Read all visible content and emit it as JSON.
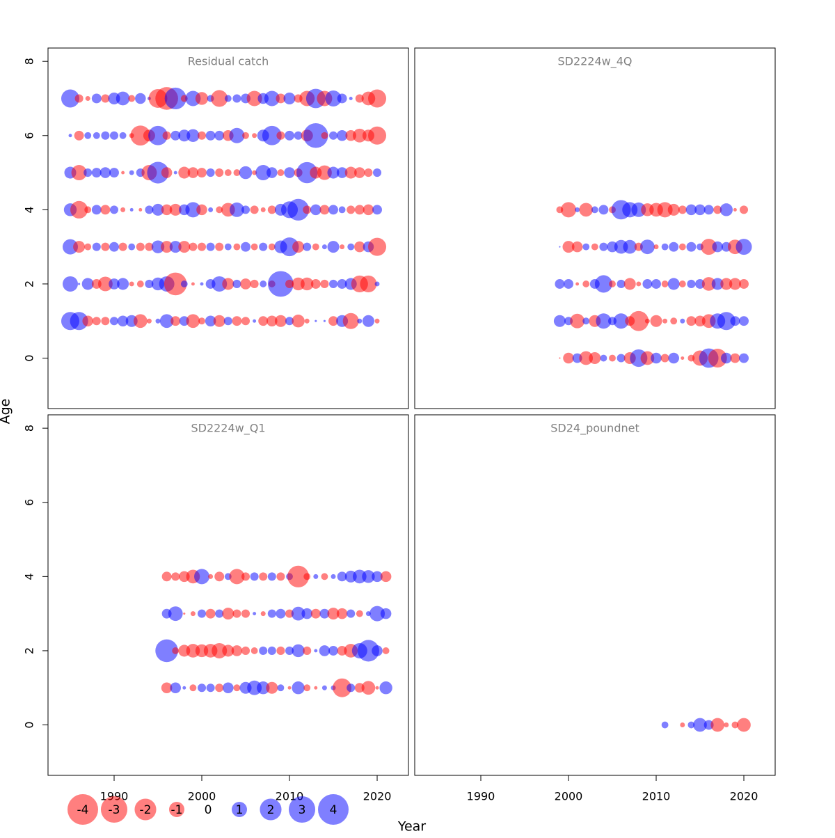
{
  "chart_data": {
    "type": "bubble",
    "x_label": "Year",
    "y_label": "Age",
    "xlim": [
      1982.46,
      2023.57
    ],
    "ylim": [
      -1.36,
      8.36
    ],
    "xticks": [
      1990,
      2000,
      2010,
      2020
    ],
    "yticks": [
      0,
      2,
      4,
      6,
      8
    ],
    "colors": {
      "negative": "#ff0000",
      "positive": "#0000ff"
    },
    "opacity": 0.5,
    "size_legend": [
      -4,
      -3,
      -2,
      -1,
      0,
      1,
      2,
      3,
      4
    ],
    "panels": [
      {
        "title": "Residual catch",
        "x": [
          1985,
          1986,
          1987,
          1988,
          1989,
          1990,
          1991,
          1992,
          1993,
          1994,
          1995,
          1996,
          1997,
          1998,
          1999,
          2000,
          2001,
          2002,
          2003,
          2004,
          2005,
          2006,
          2007,
          2008,
          2009,
          2010,
          2011,
          2012,
          2013,
          2014,
          2015,
          2016,
          2017,
          2018,
          2019,
          2020
        ],
        "series": [
          {
            "y": 7,
            "values": [
              1.4,
              -0.3,
              -0.1,
              0.4,
              -0.3,
              0.6,
              0.8,
              -0.2,
              0.5,
              0.05,
              -1.5,
              -2.2,
              2.0,
              -0.2,
              1.0,
              -0.7,
              0.2,
              -1.2,
              0.2,
              0.3,
              0.4,
              -1.0,
              0.5,
              1.0,
              -0.4,
              0.6,
              -0.3,
              -1.0,
              1.6,
              -1.0,
              1.1,
              0.4,
              0.05,
              -0.3,
              -0.8,
              -1.4
            ]
          },
          {
            "y": 6,
            "values": [
              0.05,
              -0.4,
              0.2,
              0.2,
              0.3,
              0.3,
              0.2,
              -0.1,
              -1.7,
              -0.6,
              1.6,
              -0.3,
              0.4,
              0.6,
              0.7,
              -0.3,
              0.4,
              0.4,
              -0.5,
              1.0,
              -0.2,
              -0.1,
              0.6,
              1.6,
              -0.3,
              0.4,
              0.3,
              -0.6,
              2.6,
              -0.2,
              0.3,
              0.5,
              -0.5,
              -0.8,
              -0.6,
              -1.4
            ]
          },
          {
            "y": 5,
            "values": [
              0.6,
              -1.0,
              0.3,
              0.4,
              0.5,
              0.4,
              -0.05,
              0.1,
              0.3,
              -1.0,
              2.0,
              -0.5,
              0.05,
              -0.6,
              -0.5,
              -0.4,
              0.3,
              -0.3,
              -0.2,
              -0.2,
              0.7,
              -0.1,
              1.0,
              0.5,
              -0.2,
              0.5,
              -0.3,
              1.9,
              -0.6,
              -0.9,
              0.6,
              0.5,
              -0.6,
              -0.5,
              -0.3,
              0.3
            ]
          },
          {
            "y": 4,
            "values": [
              0.7,
              -1.3,
              -0.2,
              0.4,
              -0.4,
              0.3,
              -0.1,
              0.05,
              -0.05,
              0.3,
              0.6,
              -0.5,
              -0.6,
              0.5,
              1.0,
              -0.5,
              0.1,
              -0.2,
              -0.8,
              0.9,
              0.3,
              -0.3,
              -0.1,
              -0.3,
              0.6,
              1.2,
              2.0,
              -0.3,
              0.5,
              -0.4,
              0.4,
              0.2,
              -0.3,
              -0.4,
              -0.5,
              0.4
            ]
          },
          {
            "y": 3,
            "values": [
              1.0,
              -0.6,
              -0.2,
              0.3,
              -0.3,
              0.4,
              -0.3,
              0.2,
              -0.3,
              -0.3,
              0.7,
              -0.6,
              0.6,
              -0.6,
              -0.3,
              -0.3,
              0.3,
              -0.3,
              0.2,
              -0.2,
              0.4,
              -0.2,
              0.3,
              -0.2,
              0.7,
              1.5,
              -0.6,
              0.3,
              -0.2,
              0.1,
              0.6,
              -0.1,
              0.2,
              -0.5,
              0.5,
              -1.4
            ]
          },
          {
            "y": 2,
            "values": [
              1.0,
              0.02,
              0.6,
              -0.4,
              -0.9,
              0.5,
              0.6,
              -0.1,
              -0.2,
              0.3,
              0.7,
              1.0,
              -2.2,
              0.2,
              -0.05,
              0.05,
              0.4,
              1.0,
              -0.6,
              0.3,
              -0.5,
              -0.3,
              0.2,
              -0.2,
              2.8,
              -0.3,
              -0.7,
              -0.7,
              -0.4,
              -0.3,
              0.3,
              0.4,
              0.6,
              -1.2,
              -1.2,
              0.1
            ]
          },
          {
            "y": 1,
            "values": [
              1.4,
              1.4,
              -0.5,
              -0.3,
              -0.3,
              0.3,
              0.5,
              0.6,
              -0.8,
              -0.1,
              0.1,
              0.8,
              -0.4,
              0.4,
              -0.8,
              -0.2,
              0.5,
              -0.6,
              0.3,
              -0.4,
              -0.3,
              0.05,
              -0.4,
              -0.5,
              -0.6,
              0.3,
              -0.7,
              -0.1,
              0.02,
              0.02,
              -0.4,
              0.6,
              -1.1,
              0.1,
              0.6,
              -0.1
            ]
          }
        ]
      },
      {
        "title": "SD2224w_4Q",
        "x": [
          1999,
          2000,
          2001,
          2002,
          2003,
          2004,
          2005,
          2006,
          2007,
          2008,
          2009,
          2010,
          2011,
          2012,
          2013,
          2014,
          2015,
          2016,
          2017,
          2018,
          2019,
          2020
        ],
        "series": [
          {
            "y": 4,
            "values": [
              -0.2,
              -1.0,
              0.1,
              -0.8,
              0.2,
              0.4,
              -0.2,
              1.6,
              1.0,
              0.9,
              -0.7,
              -0.8,
              -1.0,
              -0.6,
              -0.3,
              0.5,
              0.5,
              0.4,
              -0.3,
              0.7,
              -0.05,
              -0.3
            ]
          },
          {
            "y": 3,
            "values": [
              0.01,
              -0.6,
              -0.5,
              0.2,
              -0.2,
              0.3,
              0.5,
              0.8,
              0.8,
              -0.3,
              0.9,
              -0.1,
              0.2,
              0.4,
              -0.2,
              0.4,
              0.2,
              -1.1,
              0.5,
              0.4,
              -0.9,
              1.1
            ]
          },
          {
            "y": 2,
            "values": [
              0.4,
              0.4,
              -0.05,
              -0.2,
              0.4,
              1.3,
              -0.2,
              0.3,
              -0.6,
              -0.1,
              0.4,
              0.4,
              -0.2,
              0.6,
              -0.2,
              0.3,
              0.4,
              -0.8,
              0.6,
              -0.6,
              -0.6,
              -0.4
            ]
          },
          {
            "y": 1,
            "values": [
              0.6,
              0.3,
              -0.9,
              0.2,
              -0.6,
              1.0,
              0.3,
              1.0,
              -0.4,
              -1.7,
              -0.1,
              -0.6,
              -0.1,
              -0.2,
              0.1,
              -0.4,
              -0.5,
              -0.8,
              1.0,
              1.4,
              0.4,
              0.4
            ]
          },
          {
            "y": 0,
            "values": [
              -0.01,
              -0.5,
              0.4,
              -0.8,
              -0.6,
              0.2,
              -0.2,
              0.3,
              -0.6,
              1.3,
              -0.8,
              0.5,
              -0.3,
              0.5,
              -0.05,
              -0.2,
              -1.0,
              1.6,
              -1.5,
              0.5,
              -0.4,
              0.4
            ]
          }
        ]
      },
      {
        "title": "SD2224w_Q1",
        "x": [
          1996,
          1997,
          1998,
          1999,
          2000,
          2001,
          2002,
          2003,
          2004,
          2005,
          2006,
          2007,
          2008,
          2009,
          2010,
          2011,
          2012,
          2013,
          2014,
          2015,
          2016,
          2017,
          2018,
          2019,
          2020,
          2021
        ],
        "series": [
          {
            "y": 4,
            "values": [
              -0.4,
              -0.3,
              -0.5,
              -0.8,
              1.0,
              -0.1,
              -0.4,
              0.2,
              -1.0,
              -0.3,
              0.3,
              -0.3,
              0.3,
              -0.3,
              0.2,
              -2.0,
              -0.2,
              0.1,
              -0.2,
              0.1,
              0.4,
              0.6,
              0.8,
              0.7,
              0.5,
              -0.5
            ]
          },
          {
            "y": 3,
            "values": [
              0.4,
              0.9,
              -0.02,
              -0.1,
              0.3,
              -0.4,
              0.3,
              -0.6,
              -0.3,
              -0.3,
              0.05,
              -0.1,
              0.3,
              0.4,
              -0.3,
              0.8,
              0.5,
              -0.4,
              0.4,
              -0.6,
              -0.5,
              0.3,
              -0.2,
              0.1,
              1.0,
              0.5
            ]
          },
          {
            "y": 2,
            "values": [
              2.2,
              -0.2,
              -0.6,
              -0.8,
              -0.7,
              -0.8,
              -1.0,
              -0.6,
              -0.5,
              -0.3,
              -0.2,
              0.3,
              0.3,
              -0.3,
              0.3,
              0.7,
              -0.3,
              0.05,
              0.5,
              0.4,
              -0.4,
              -0.8,
              1.0,
              2.0,
              0.5,
              -0.2
            ]
          },
          {
            "y": 1,
            "values": [
              -0.5,
              0.5,
              0.05,
              -0.2,
              0.3,
              0.3,
              -0.3,
              0.5,
              -0.2,
              0.6,
              0.9,
              0.7,
              -0.6,
              0.2,
              -0.05,
              0.7,
              -0.2,
              -0.05,
              0.1,
              0.1,
              -1.5,
              0.3,
              -0.4,
              -0.8,
              -0.05,
              0.7
            ]
          }
        ]
      },
      {
        "title": "SD24_poundnet",
        "x": [
          2011,
          2012,
          2013,
          2014,
          2015,
          2016,
          2017,
          2018,
          2019,
          2020
        ],
        "series": [
          {
            "y": 0,
            "values": [
              0.2,
              null,
              -0.1,
              0.2,
              0.8,
              0.4,
              -0.8,
              -0.1,
              -0.2,
              -0.8
            ]
          }
        ]
      }
    ]
  }
}
